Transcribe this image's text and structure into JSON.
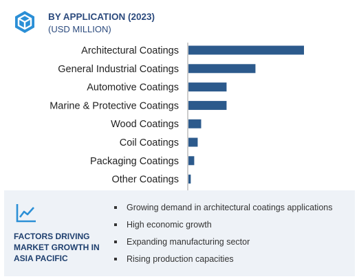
{
  "header": {
    "title": "BY APPLICATION (2023)",
    "subtitle": "(USD MILLION)",
    "logo_icon": "cube-icon"
  },
  "colors": {
    "bar": "#2c5a8c",
    "title": "#2b4a7d",
    "axis": "#999999",
    "panel_bg": "#eef2f7"
  },
  "chart_data": {
    "type": "bar",
    "orientation": "horizontal",
    "title": "BY APPLICATION (2023)",
    "units": "(USD MILLION)",
    "categories": [
      "Architectural Coatings",
      "General Industrial Coatings",
      "Automotive Coatings",
      "Marine & Protective Coatings",
      "Wood Coatings",
      "Coil Coatings",
      "Packaging Coatings",
      "Other Coatings"
    ],
    "values": [
      100,
      58,
      33,
      33,
      11,
      8,
      5,
      2
    ],
    "xlim": [
      0,
      100
    ],
    "grid": false,
    "legend": "none"
  },
  "panel": {
    "icon": "trend-chart-icon",
    "title_lines": [
      "FACTORS DRIVING",
      "MARKET GROWTH IN",
      "ASIA PACIFIC"
    ],
    "factors": [
      "Growing demand in architectural coatings applications",
      "High economic growth",
      "Expanding manufacturing sector",
      "Rising production capacities"
    ]
  }
}
